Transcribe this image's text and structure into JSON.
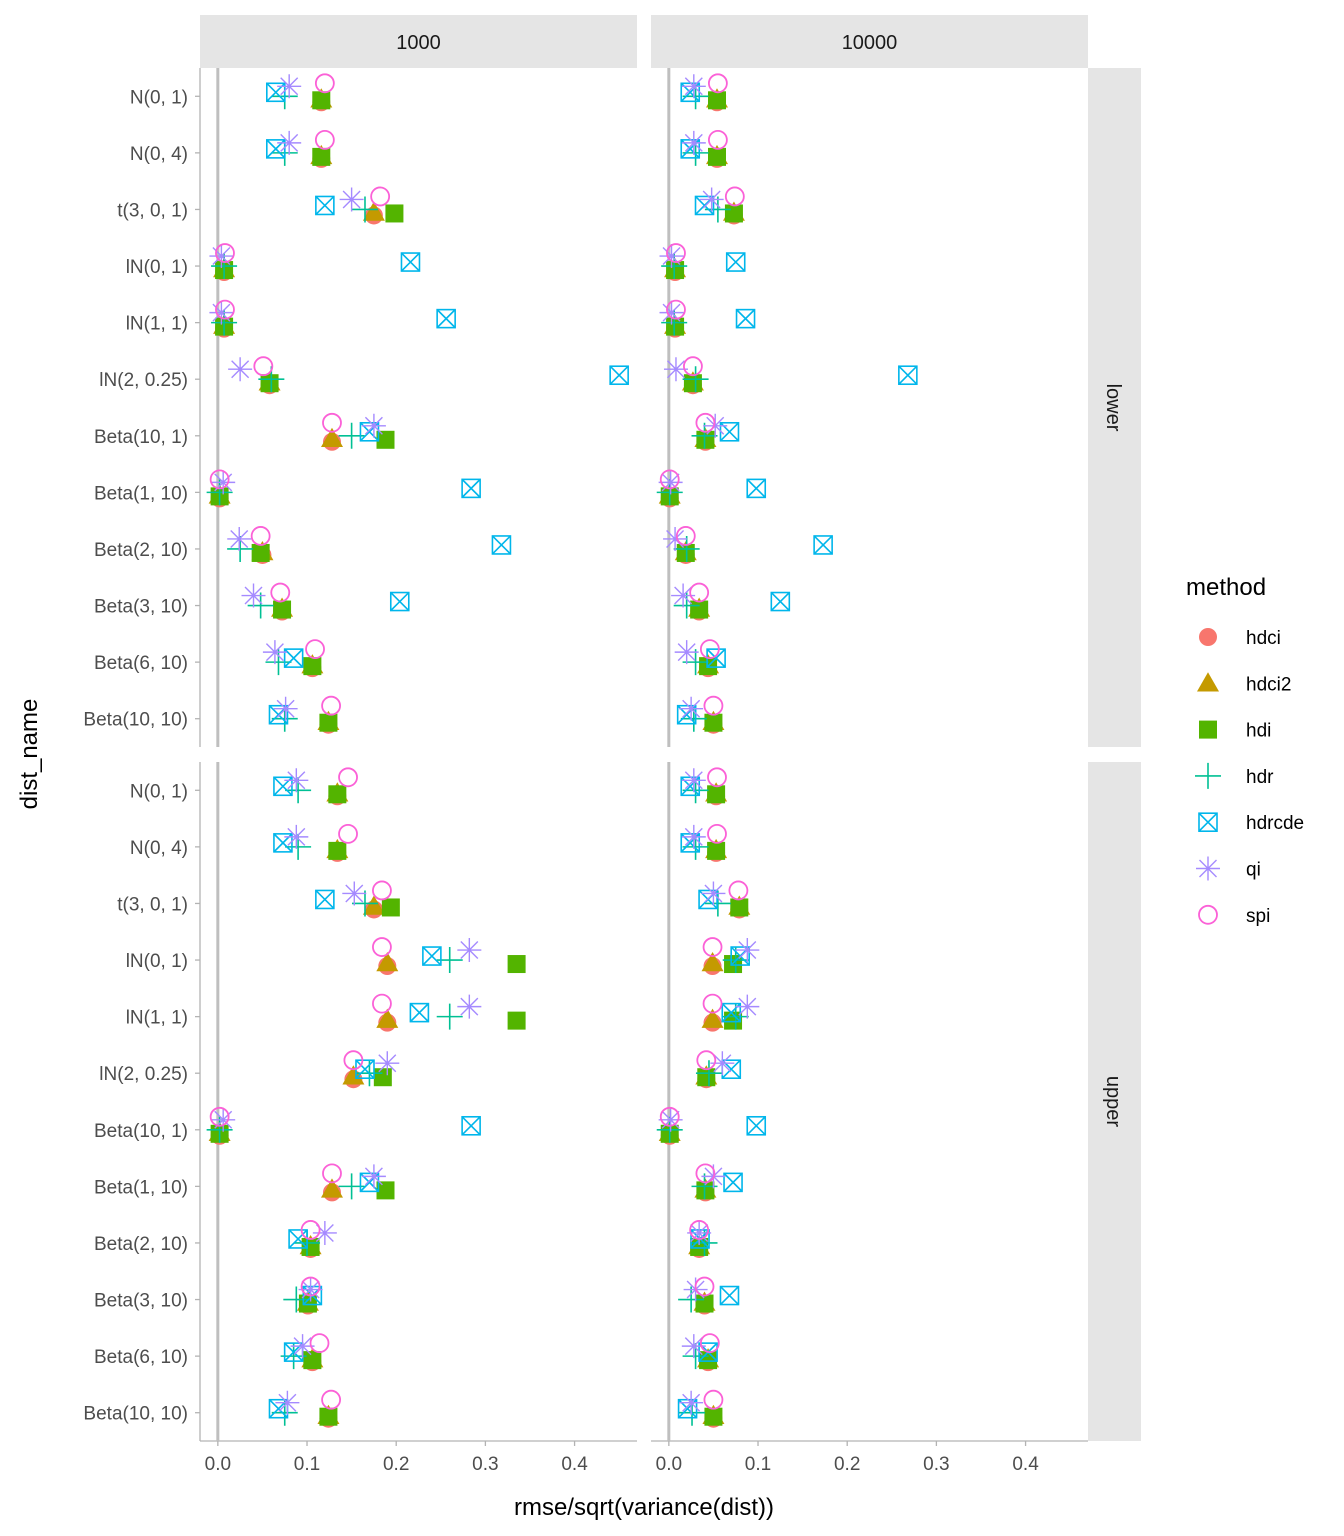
{
  "chart_data": {
    "type": "scatter",
    "xlabel": "rmse/sqrt(variance(dist))",
    "ylabel": "dist_name",
    "xlim": [
      -0.02,
      0.47
    ],
    "x_ticks": [
      "0.0",
      "0.1",
      "0.2",
      "0.3",
      "0.4"
    ],
    "x_tick_values": [
      0.0,
      0.1,
      0.2,
      0.3,
      0.4
    ],
    "reference_line_x": 0,
    "column_facets": [
      "1000",
      "10000"
    ],
    "row_facets": [
      "lower",
      "upper"
    ],
    "categories": [
      "N(0, 1)",
      "N(0, 4)",
      "t(3, 0, 1)",
      "lN(0, 1)",
      "lN(1, 1)",
      "lN(2, 0.25)",
      "Beta(10, 1)",
      "Beta(1, 10)",
      "Beta(2, 10)",
      "Beta(3, 10)",
      "Beta(6, 10)",
      "Beta(10, 10)"
    ],
    "legend": {
      "title": "method",
      "position": "right",
      "items": [
        {
          "name": "hdci",
          "shape": "circle-filled",
          "color": "#F8766D"
        },
        {
          "name": "hdci2",
          "shape": "triangle-filled",
          "color": "#C49A00"
        },
        {
          "name": "hdi",
          "shape": "square-filled",
          "color": "#53B400"
        },
        {
          "name": "hdr",
          "shape": "plus",
          "color": "#00C094"
        },
        {
          "name": "hdrcde",
          "shape": "square-cross",
          "color": "#00B6EB"
        },
        {
          "name": "qi",
          "shape": "asterisk",
          "color": "#A58AFF"
        },
        {
          "name": "spi",
          "shape": "circle-open",
          "color": "#FB61D7"
        }
      ]
    },
    "series_order": [
      "hdci",
      "hdci2",
      "hdi",
      "hdr",
      "hdrcde",
      "qi",
      "spi"
    ],
    "panels": [
      {
        "column": "1000",
        "row": "lower",
        "points": {
          "N(0, 1)": [
            0.116,
            0.116,
            0.116,
            0.075,
            0.065,
            0.08,
            0.12
          ],
          "N(0, 4)": [
            0.116,
            0.116,
            0.116,
            0.075,
            0.065,
            0.08,
            0.12
          ],
          "t(3, 0, 1)": [
            0.175,
            0.175,
            0.198,
            0.165,
            0.12,
            0.15,
            0.182
          ],
          "lN(0, 1)": [
            0.007,
            0.007,
            0.007,
            0.007,
            0.216,
            0.004,
            0.008
          ],
          "lN(1, 1)": [
            0.007,
            0.007,
            0.007,
            0.007,
            0.256,
            0.004,
            0.008
          ],
          "lN(2, 0.25)": [
            0.058,
            0.058,
            0.058,
            0.06,
            0.45,
            0.025,
            0.051
          ],
          "Beta(10, 1)": [
            0.128,
            0.128,
            0.188,
            0.15,
            0.17,
            0.175,
            0.128
          ],
          "Beta(1, 10)": [
            0.002,
            0.002,
            0.002,
            0.002,
            0.284,
            0.006,
            0.002
          ],
          "Beta(2, 10)": [
            0.05,
            0.05,
            0.048,
            0.025,
            0.318,
            0.024,
            0.048
          ],
          "Beta(3, 10)": [
            0.072,
            0.072,
            0.072,
            0.048,
            0.204,
            0.04,
            0.07
          ],
          "Beta(6, 10)": [
            0.106,
            0.106,
            0.106,
            0.068,
            0.085,
            0.064,
            0.109
          ],
          "Beta(10, 10)": [
            0.124,
            0.124,
            0.124,
            0.075,
            0.068,
            0.076,
            0.127
          ]
        }
      },
      {
        "column": "10000",
        "row": "lower",
        "points": {
          "N(0, 1)": [
            0.054,
            0.054,
            0.054,
            0.03,
            0.024,
            0.028,
            0.055
          ],
          "N(0, 4)": [
            0.054,
            0.054,
            0.054,
            0.03,
            0.024,
            0.028,
            0.055
          ],
          "t(3, 0, 1)": [
            0.073,
            0.073,
            0.073,
            0.055,
            0.04,
            0.048,
            0.074
          ],
          "lN(0, 1)": [
            0.007,
            0.007,
            0.007,
            0.006,
            0.075,
            0.003,
            0.008
          ],
          "lN(1, 1)": [
            0.007,
            0.007,
            0.007,
            0.006,
            0.086,
            0.003,
            0.008
          ],
          "lN(2, 0.25)": [
            0.027,
            0.027,
            0.027,
            0.03,
            0.268,
            0.008,
            0.027
          ],
          "Beta(10, 1)": [
            0.041,
            0.041,
            0.041,
            0.04,
            0.068,
            0.052,
            0.041
          ],
          "Beta(1, 10)": [
            0.001,
            0.001,
            0.001,
            0.001,
            0.098,
            0.002,
            0.001
          ],
          "Beta(2, 10)": [
            0.019,
            0.019,
            0.019,
            0.02,
            0.173,
            0.007,
            0.019
          ],
          "Beta(3, 10)": [
            0.034,
            0.034,
            0.034,
            0.02,
            0.125,
            0.016,
            0.034
          ],
          "Beta(6, 10)": [
            0.044,
            0.044,
            0.044,
            0.03,
            0.053,
            0.02,
            0.046
          ],
          "Beta(10, 10)": [
            0.05,
            0.05,
            0.05,
            0.028,
            0.02,
            0.025,
            0.05
          ]
        }
      },
      {
        "column": "1000",
        "row": "upper",
        "points": {
          "N(0, 1)": [
            0.134,
            0.134,
            0.134,
            0.09,
            0.073,
            0.088,
            0.146
          ],
          "N(0, 4)": [
            0.134,
            0.134,
            0.134,
            0.09,
            0.073,
            0.088,
            0.146
          ],
          "t(3, 0, 1)": [
            0.175,
            0.175,
            0.194,
            0.165,
            0.12,
            0.153,
            0.184
          ],
          "lN(0, 1)": [
            0.19,
            0.19,
            0.335,
            0.26,
            0.24,
            0.282,
            0.184
          ],
          "lN(1, 1)": [
            0.19,
            0.19,
            0.335,
            0.26,
            0.226,
            0.282,
            0.184
          ],
          "lN(2, 0.25)": [
            0.152,
            0.152,
            0.185,
            0.17,
            0.165,
            0.19,
            0.152
          ],
          "Beta(10, 1)": [
            0.002,
            0.002,
            0.002,
            0.002,
            0.284,
            0.006,
            0.002
          ],
          "Beta(1, 10)": [
            0.128,
            0.128,
            0.188,
            0.15,
            0.17,
            0.175,
            0.128
          ],
          "Beta(2, 10)": [
            0.104,
            0.104,
            0.104,
            0.1,
            0.09,
            0.12,
            0.104
          ],
          "Beta(3, 10)": [
            0.101,
            0.101,
            0.101,
            0.088,
            0.106,
            0.104,
            0.104
          ],
          "Beta(6, 10)": [
            0.106,
            0.106,
            0.106,
            0.085,
            0.085,
            0.095,
            0.114
          ],
          "Beta(10, 10)": [
            0.124,
            0.124,
            0.124,
            0.075,
            0.068,
            0.078,
            0.127
          ]
        }
      },
      {
        "column": "10000",
        "row": "upper",
        "points": {
          "N(0, 1)": [
            0.053,
            0.053,
            0.053,
            0.03,
            0.024,
            0.028,
            0.054
          ],
          "N(0, 4)": [
            0.053,
            0.053,
            0.053,
            0.03,
            0.024,
            0.028,
            0.054
          ],
          "t(3, 0, 1)": [
            0.079,
            0.079,
            0.079,
            0.055,
            0.044,
            0.05,
            0.078
          ],
          "lN(0, 1)": [
            0.049,
            0.049,
            0.072,
            0.075,
            0.08,
            0.088,
            0.049
          ],
          "lN(1, 1)": [
            0.049,
            0.049,
            0.072,
            0.075,
            0.07,
            0.088,
            0.049
          ],
          "lN(2, 0.25)": [
            0.042,
            0.042,
            0.042,
            0.045,
            0.07,
            0.06,
            0.042
          ],
          "Beta(10, 1)": [
            0.001,
            0.001,
            0.001,
            0.001,
            0.098,
            0.002,
            0.001
          ],
          "Beta(1, 10)": [
            0.041,
            0.041,
            0.041,
            0.04,
            0.072,
            0.05,
            0.041
          ],
          "Beta(2, 10)": [
            0.034,
            0.034,
            0.034,
            0.04,
            0.035,
            0.034,
            0.034
          ],
          "Beta(3, 10)": [
            0.04,
            0.04,
            0.04,
            0.025,
            0.068,
            0.03,
            0.04
          ],
          "Beta(6, 10)": [
            0.044,
            0.044,
            0.044,
            0.03,
            0.044,
            0.028,
            0.046
          ],
          "Beta(10, 10)": [
            0.05,
            0.05,
            0.05,
            0.026,
            0.021,
            0.025,
            0.05
          ]
        }
      }
    ]
  }
}
